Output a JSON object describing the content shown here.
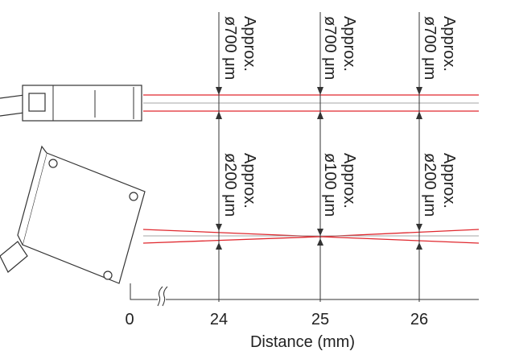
{
  "top_row": {
    "labels": [
      {
        "line1": "Approx.",
        "line2": "ø700 μm"
      },
      {
        "line1": "Approx.",
        "line2": "ø700 μm"
      },
      {
        "line1": "Approx.",
        "line2": "ø700 μm"
      }
    ]
  },
  "bottom_row": {
    "labels": [
      {
        "line1": "Approx.",
        "line2": "ø200 μm"
      },
      {
        "line1": "Approx.",
        "line2": "ø100 μm"
      },
      {
        "line1": "Approx.",
        "line2": "ø200 μm"
      }
    ]
  },
  "axis": {
    "ticks": [
      "0",
      "24",
      "25",
      "26"
    ],
    "title": "Distance (mm)"
  }
}
